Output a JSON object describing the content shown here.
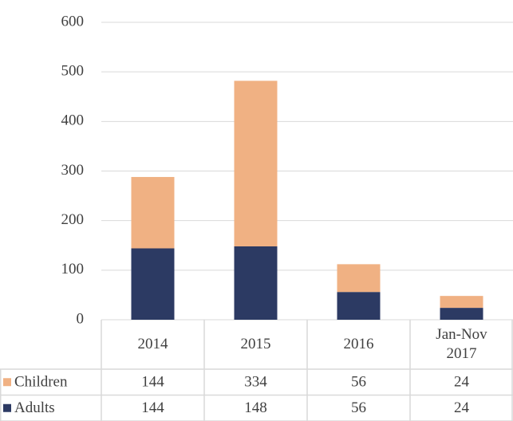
{
  "chart_data": {
    "type": "bar",
    "stacked": true,
    "categories": [
      "2014",
      "2015",
      "2016",
      "Jan-Nov 2017"
    ],
    "series": [
      {
        "name": "Children",
        "color": "#f0b183",
        "values": [
          144,
          334,
          56,
          24
        ]
      },
      {
        "name": "Adults",
        "color": "#2c3a63",
        "values": [
          144,
          148,
          56,
          24
        ]
      }
    ],
    "ylim": [
      0,
      600
    ],
    "yticks": [
      0,
      100,
      200,
      300,
      400,
      500,
      600
    ],
    "grid": true
  }
}
